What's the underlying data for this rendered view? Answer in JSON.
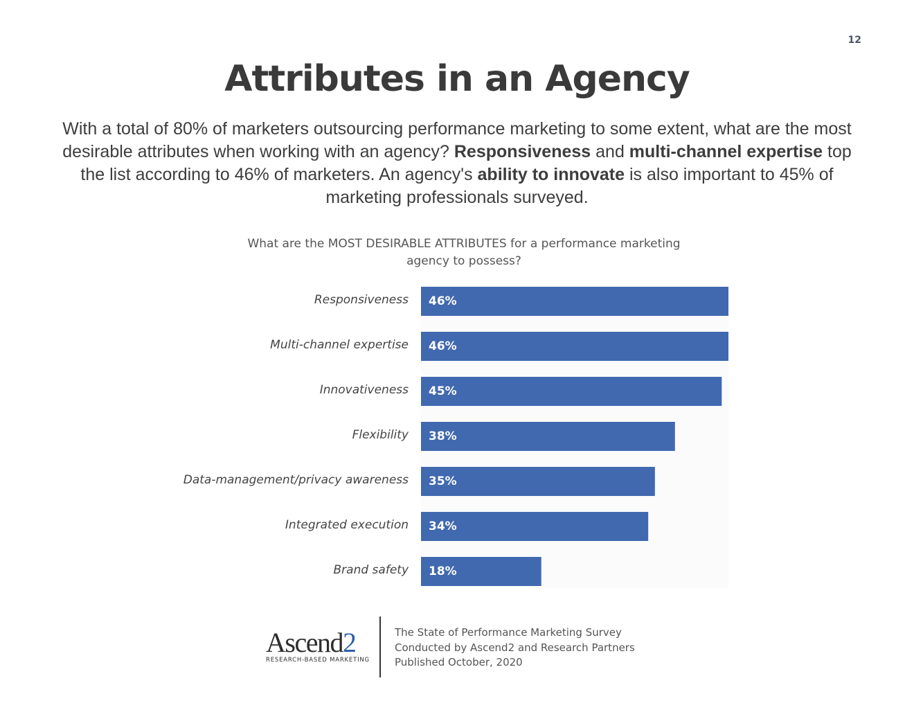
{
  "page": {
    "number": "12",
    "title": "Attributes in an Agency",
    "intro": {
      "p1": "With a total of 80% of marketers outsourcing performance marketing to some extent, what are the most desirable attributes when working with an agency? ",
      "b1": "Responsiveness",
      "p2": " and ",
      "b2": "multi-channel expertise",
      "p3": " top the list according to 46% of marketers. An agency's ",
      "b3": "ability to innovate",
      "p4": " is also important to 45% of marketing professionals surveyed."
    }
  },
  "chart_data": {
    "type": "bar",
    "orientation": "horizontal",
    "title": "What are the MOST DESIRABLE ATTRIBUTES for a performance marketing agency to possess?",
    "categories": [
      "Responsiveness",
      "Multi-channel expertise",
      "Innovativeness",
      "Flexibility",
      "Data-management/privacy awareness",
      "Integrated execution",
      "Brand safety"
    ],
    "values": [
      46,
      46,
      45,
      38,
      35,
      34,
      18
    ],
    "value_labels": [
      "46%",
      "46%",
      "45%",
      "38%",
      "35%",
      "34%",
      "18%"
    ],
    "xlim": [
      0,
      46
    ],
    "unit": "%",
    "grid": false,
    "bar_color": "#4169b0"
  },
  "footer": {
    "logo_main": "Ascend",
    "logo_accent": "2",
    "logo_tagline": "RESEARCH-BASED MARKETING",
    "source_lines": [
      "The State of Performance Marketing Survey",
      "Conducted by Ascend2 and Research Partners",
      "Published October, 2020"
    ]
  }
}
